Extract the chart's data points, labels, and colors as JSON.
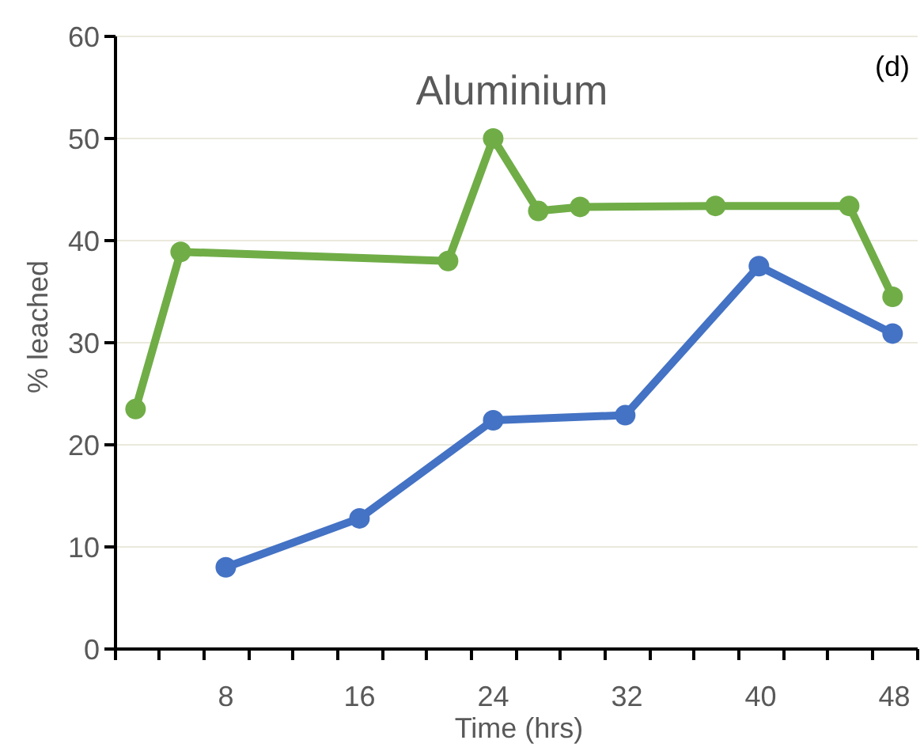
{
  "chart_data": {
    "type": "line",
    "title": "Aluminium",
    "xlabel": "Time (hrs)",
    "ylabel": "% leached",
    "annotations": [
      "(d)"
    ],
    "xlim": [
      1.4,
      49.4
    ],
    "xticks": [
      {
        "value": 1.4,
        "label": null
      },
      {
        "value": 4.0,
        "label": null
      },
      {
        "value": 6.7,
        "label": null
      },
      8,
      {
        "value": 9.4,
        "label": null
      },
      {
        "value": 12.0,
        "label": null
      },
      {
        "value": 14.7,
        "label": null
      },
      16,
      {
        "value": 17.4,
        "label": null
      },
      {
        "value": 20.0,
        "label": null
      },
      {
        "value": 22.7,
        "label": null
      },
      24,
      {
        "value": 25.4,
        "label": null
      },
      {
        "value": 28.0,
        "label": null
      },
      {
        "value": 30.7,
        "label": null
      },
      32,
      {
        "value": 33.4,
        "label": null
      },
      {
        "value": 36.0,
        "label": null
      },
      {
        "value": 38.7,
        "label": null
      },
      40,
      {
        "value": 41.4,
        "label": null
      },
      {
        "value": 44.0,
        "label": null
      },
      {
        "value": 46.7,
        "label": null
      },
      48,
      {
        "value": 49.4,
        "label": null
      }
    ],
    "ylim": [
      0,
      60
    ],
    "yticks": [
      0,
      10,
      20,
      30,
      40,
      50,
      60
    ],
    "grid": "y",
    "marker": "circle",
    "line_style": "solid",
    "series": [
      {
        "color": "#70ad47",
        "x": [
          2.6,
          5.3,
          21.3,
          24.0,
          26.7,
          29.2,
          37.3,
          45.3,
          47.9
        ],
        "values": [
          23.5,
          38.9,
          38.0,
          50.0,
          42.9,
          43.3,
          43.4,
          43.4,
          34.5
        ]
      },
      {
        "color": "#4472c4",
        "x": [
          8.0,
          16.0,
          24.0,
          31.9,
          39.9,
          47.9
        ],
        "values": [
          8.0,
          12.8,
          22.4,
          22.9,
          37.5,
          30.9
        ]
      }
    ]
  }
}
